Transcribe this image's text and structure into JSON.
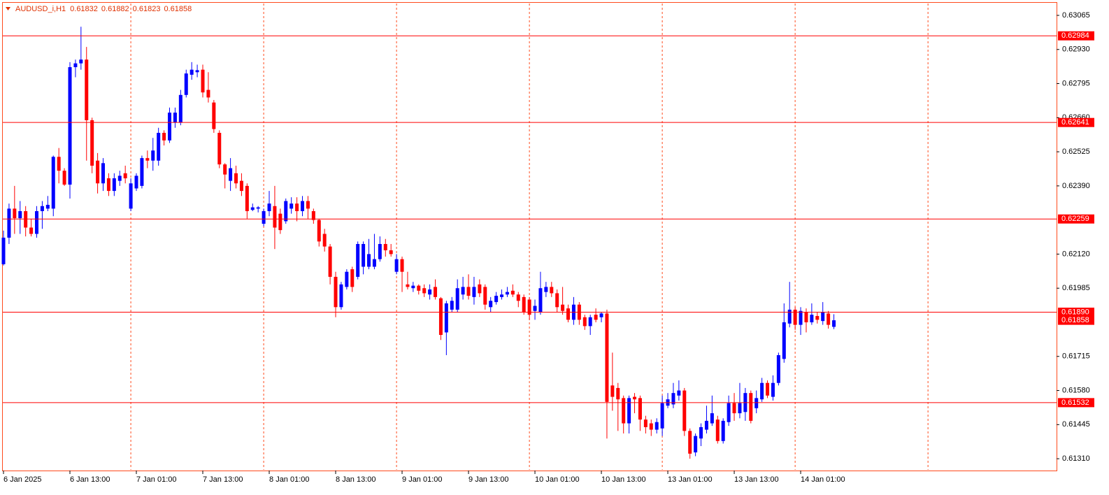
{
  "chart_data": {
    "type": "candlestick",
    "title": "AUDUSD_i,H1",
    "header_values": [
      0.61832,
      0.61882,
      0.61823,
      0.61858
    ],
    "categories": [
      "6 Jan 2025",
      null,
      null,
      null,
      null,
      null,
      null,
      null,
      null,
      null,
      null,
      null,
      "6 Jan 13:00",
      null,
      null,
      null,
      null,
      null,
      null,
      null,
      null,
      null,
      null,
      null,
      "7 Jan 01:00",
      null,
      null,
      null,
      null,
      null,
      null,
      null,
      null,
      null,
      null,
      null,
      "7 Jan 13:00",
      null,
      null,
      null,
      null,
      null,
      null,
      null,
      null,
      null,
      null,
      null,
      "8 Jan 01:00",
      null,
      null,
      null,
      null,
      null,
      null,
      null,
      null,
      null,
      null,
      null,
      "8 Jan 13:00",
      null,
      null,
      null,
      null,
      null,
      null,
      null,
      null,
      null,
      null,
      null,
      "9 Jan 01:00",
      null,
      null,
      null,
      null,
      null,
      null,
      null,
      null,
      null,
      null,
      null,
      "9 Jan 13:00",
      null,
      null,
      null,
      null,
      null,
      null,
      null,
      null,
      null,
      null,
      null,
      "10 Jan 01:00",
      null,
      null,
      null,
      null,
      null,
      null,
      null,
      null,
      null,
      null,
      null,
      "10 Jan 13:00",
      null,
      null,
      null,
      null,
      null,
      null,
      null,
      null,
      null,
      null,
      null,
      "13 Jan 01:00",
      null,
      null,
      null,
      null,
      null,
      null,
      null,
      null,
      null,
      null,
      null,
      "13 Jan 13:00",
      null,
      null,
      null,
      null,
      null,
      null,
      null,
      null,
      null,
      null,
      null,
      "14 Jan 01:00",
      null,
      null,
      null,
      null,
      null,
      null
    ],
    "open": [
      0.6208,
      0.62185,
      0.623,
      0.62262,
      0.6229,
      0.62225,
      0.622,
      0.6229,
      0.623,
      0.623,
      0.62505,
      0.6245,
      0.62395,
      0.6286,
      0.62875,
      0.6289,
      0.6265,
      0.6249,
      0.624,
      0.6242,
      0.6237,
      0.6241,
      0.6244,
      0.623,
      0.6238,
      0.6239,
      0.625,
      0.6249,
      0.6249,
      0.626,
      0.6257,
      0.6264,
      0.6264,
      0.6275,
      0.6283,
      0.6284,
      0.6285,
      0.6277,
      0.6272,
      0.626,
      0.62475,
      0.6241,
      0.6244,
      0.6241,
      0.6239,
      0.62295,
      0.623,
      0.6224,
      0.6229,
      0.6231,
      0.6228,
      0.6225,
      0.623,
      0.6232,
      0.6229,
      0.6233,
      0.6229,
      0.62255,
      0.622,
      0.6215,
      0.6203,
      0.6191,
      0.6199,
      0.6206,
      0.6203,
      0.6207,
      0.6207,
      0.6207,
      0.621,
      0.6216,
      0.62135,
      0.6205,
      0.621,
      0.62,
      0.61985,
      0.61995,
      0.61985,
      0.6196,
      0.6199,
      0.61945,
      0.6181,
      0.619,
      0.619,
      0.6196,
      0.6199,
      0.6195,
      0.62,
      0.6199,
      0.6191,
      0.6193,
      0.6195,
      0.6196,
      0.61975,
      0.6196,
      0.6195,
      0.6194,
      0.61895,
      0.6189,
      0.6197,
      0.6199,
      0.61965,
      0.6192,
      0.61905,
      0.6186,
      0.6192,
      0.6187,
      0.61835,
      0.6188,
      0.6187,
      0.61885,
      0.616,
      0.6159,
      0.6155,
      0.6145,
      0.61555,
      0.6155,
      0.61465,
      0.6145,
      0.61425,
      0.6143,
      0.6152,
      0.61525,
      0.6156,
      0.6158,
      0.6142,
      0.61335,
      0.6139,
      0.61425,
      0.6145,
      0.61465,
      0.6138,
      0.61455,
      0.6153,
      0.6149,
      0.61495,
      0.6157,
      0.6151,
      0.61545,
      0.6161,
      0.61555,
      0.6161,
      0.61705,
      0.61845,
      0.619,
      0.6184,
      0.6189,
      0.6185,
      0.61875,
      0.61855,
      0.61885,
      0.61832
    ],
    "high": [
      0.62213,
      0.6232,
      0.6239,
      0.6233,
      0.6231,
      0.6226,
      0.6231,
      0.6233,
      0.6235,
      0.6251,
      0.6254,
      0.6246,
      0.6288,
      0.6289,
      0.6302,
      0.6294,
      0.6266,
      0.6252,
      0.625,
      0.6244,
      0.6244,
      0.6245,
      0.6247,
      0.6242,
      0.6244,
      0.6251,
      0.6253,
      0.6258,
      0.6262,
      0.6261,
      0.627,
      0.627,
      0.6277,
      0.6285,
      0.6288,
      0.6287,
      0.6287,
      0.6284,
      0.6273,
      0.6261,
      0.6248,
      0.625,
      0.6247,
      0.6244,
      0.624,
      0.6232,
      0.6231,
      0.623,
      0.6237,
      0.6239,
      0.623,
      0.6234,
      0.62345,
      0.62345,
      0.6235,
      0.6235,
      0.623,
      0.6226,
      0.6222,
      0.6216,
      0.6205,
      0.6201,
      0.6206,
      0.6207,
      0.6217,
      0.6217,
      0.6218,
      0.622,
      0.6219,
      0.6218,
      0.6216,
      0.6212,
      0.6211,
      0.6205,
      0.6201,
      0.62,
      0.62,
      0.62,
      0.6202,
      0.6195,
      0.61935,
      0.6195,
      0.6202,
      0.6203,
      0.6204,
      0.6203,
      0.6202,
      0.62,
      0.6195,
      0.6197,
      0.6198,
      0.6199,
      0.62,
      0.6197,
      0.6196,
      0.6195,
      0.6194,
      0.6205,
      0.6201,
      0.6201,
      0.6198,
      0.6199,
      0.6192,
      0.6195,
      0.6193,
      0.6188,
      0.6188,
      0.61905,
      0.6189,
      0.619,
      0.6173,
      0.6161,
      0.6156,
      0.6156,
      0.6157,
      0.6156,
      0.6148,
      0.61465,
      0.6147,
      0.6156,
      0.6157,
      0.6161,
      0.6162,
      0.6159,
      0.6143,
      0.6141,
      0.6145,
      0.6152,
      0.6156,
      0.6148,
      0.6147,
      0.6156,
      0.6157,
      0.6161,
      0.6159,
      0.6158,
      0.6158,
      0.6163,
      0.6162,
      0.6164,
      0.6173,
      0.61925,
      0.6201,
      0.6191,
      0.6191,
      0.61905,
      0.61925,
      0.6189,
      0.6193,
      0.61895,
      0.61882
    ],
    "low": [
      0.62075,
      0.6216,
      0.622,
      0.622,
      0.6219,
      0.6219,
      0.62185,
      0.6222,
      0.6229,
      0.6227,
      0.624,
      0.6239,
      0.6234,
      0.6282,
      0.6285,
      0.6249,
      0.6244,
      0.6236,
      0.6237,
      0.6235,
      0.6235,
      0.6239,
      0.624,
      0.6229,
      0.6237,
      0.6238,
      0.6246,
      0.6245,
      0.6247,
      0.6255,
      0.6256,
      0.6262,
      0.6263,
      0.6274,
      0.6281,
      0.6282,
      0.6274,
      0.6272,
      0.626,
      0.6246,
      0.6238,
      0.6237,
      0.6238,
      0.6235,
      0.6226,
      0.6229,
      0.62285,
      0.6223,
      0.6227,
      0.6214,
      0.622,
      0.6224,
      0.6228,
      0.6225,
      0.6227,
      0.6226,
      0.6224,
      0.6215,
      0.6213,
      0.62,
      0.6187,
      0.619,
      0.6198,
      0.6197,
      0.6202,
      0.6204,
      0.6206,
      0.6206,
      0.6209,
      0.6211,
      0.6211,
      0.6204,
      0.6197,
      0.6198,
      0.6197,
      0.6196,
      0.6195,
      0.6194,
      0.6194,
      0.6178,
      0.6172,
      0.6189,
      0.6189,
      0.6194,
      0.6194,
      0.6192,
      0.6195,
      0.619,
      0.6189,
      0.6192,
      0.6194,
      0.6195,
      0.6195,
      0.6191,
      0.6188,
      0.6186,
      0.6186,
      0.6188,
      0.6195,
      0.6195,
      0.6189,
      0.6188,
      0.6185,
      0.6184,
      0.6184,
      0.6182,
      0.618,
      0.6185,
      0.6185,
      0.6139,
      0.615,
      0.6142,
      0.6141,
      0.6141,
      0.6149,
      0.6142,
      0.6141,
      0.614,
      0.6141,
      0.614,
      0.6151,
      0.6151,
      0.6154,
      0.614,
      0.6131,
      0.6132,
      0.6136,
      0.6141,
      0.6144,
      0.6137,
      0.6137,
      0.6144,
      0.6146,
      0.6147,
      0.6146,
      0.6145,
      0.6149,
      0.61535,
      0.6155,
      0.6154,
      0.616,
      0.6169,
      0.6183,
      0.6182,
      0.618,
      0.6181,
      0.6184,
      0.61845,
      0.6184,
      0.61825,
      0.61823
    ],
    "close": [
      0.62185,
      0.623,
      0.62262,
      0.6229,
      0.62225,
      0.622,
      0.6229,
      0.6231,
      0.62315,
      0.62505,
      0.6245,
      0.62395,
      0.6286,
      0.62875,
      0.6289,
      0.6265,
      0.6247,
      0.624,
      0.6248,
      0.6237,
      0.6242,
      0.6243,
      0.6242,
      0.624,
      0.6243,
      0.625,
      0.6249,
      0.6253,
      0.626,
      0.6257,
      0.6268,
      0.6268,
      0.6275,
      0.62835,
      0.6285,
      0.62848,
      0.6276,
      0.6274,
      0.62615,
      0.62475,
      0.62435,
      0.6246,
      0.624,
      0.6237,
      0.6229,
      0.62305,
      0.62305,
      0.6229,
      0.6232,
      0.62225,
      0.62215,
      0.6233,
      0.6232,
      0.6229,
      0.6233,
      0.623,
      0.62255,
      0.6217,
      0.6215,
      0.6203,
      0.6191,
      0.62,
      0.6205,
      0.6199,
      0.6216,
      0.6216,
      0.6212,
      0.621,
      0.6216,
      0.62135,
      0.6212,
      0.621,
      0.6205,
      0.6199,
      0.61995,
      0.61975,
      0.61965,
      0.6198,
      0.6195,
      0.618,
      0.61925,
      0.61935,
      0.61985,
      0.6199,
      0.61955,
      0.6199,
      0.61965,
      0.6192,
      0.61935,
      0.61955,
      0.6196,
      0.6197,
      0.6196,
      0.61935,
      0.6189,
      0.6188,
      0.61915,
      0.61985,
      0.6199,
      0.61965,
      0.6191,
      0.61895,
      0.6186,
      0.6192,
      0.6186,
      0.61835,
      0.6187,
      0.6186,
      0.61885,
      0.61535,
      0.61555,
      0.61545,
      0.6145,
      0.6155,
      0.61545,
      0.61465,
      0.61435,
      0.61425,
      0.61455,
      0.6153,
      0.61545,
      0.6157,
      0.6158,
      0.6142,
      0.6133,
      0.614,
      0.61435,
      0.6146,
      0.6149,
      0.6138,
      0.6146,
      0.6153,
      0.6149,
      0.6153,
      0.6157,
      0.6146,
      0.6155,
      0.6161,
      0.6156,
      0.6161,
      0.6172,
      0.6185,
      0.619,
      0.6184,
      0.61895,
      0.6185,
      0.6188,
      0.6186,
      0.6189,
      0.6184,
      0.61858
    ],
    "up_color": "#0000ff",
    "down_color": "#ff0000",
    "ylim": [
      0.61266,
      0.63112
    ],
    "yticks": [
      {
        "value": 0.6131,
        "label": "0.61310"
      },
      0.61445,
      {
        "value": 0.6158,
        "label": "0.61580"
      },
      0.61715,
      0.61985,
      {
        "value": 0.6212,
        "label": "0.62120"
      },
      {
        "value": 0.6239,
        "label": "0.62390"
      },
      0.62525,
      {
        "value": 0.6266,
        "label": "0.62660"
      },
      0.62795,
      {
        "value": 0.6293,
        "label": "0.62930"
      },
      0.63065
    ],
    "levels": [
      0.62984,
      0.62641,
      0.62259,
      {
        "value": 0.6189,
        "label": "0.61890"
      },
      0.61532
    ],
    "level_color": "#ff0000",
    "last_price": 0.61858,
    "grid": true
  }
}
